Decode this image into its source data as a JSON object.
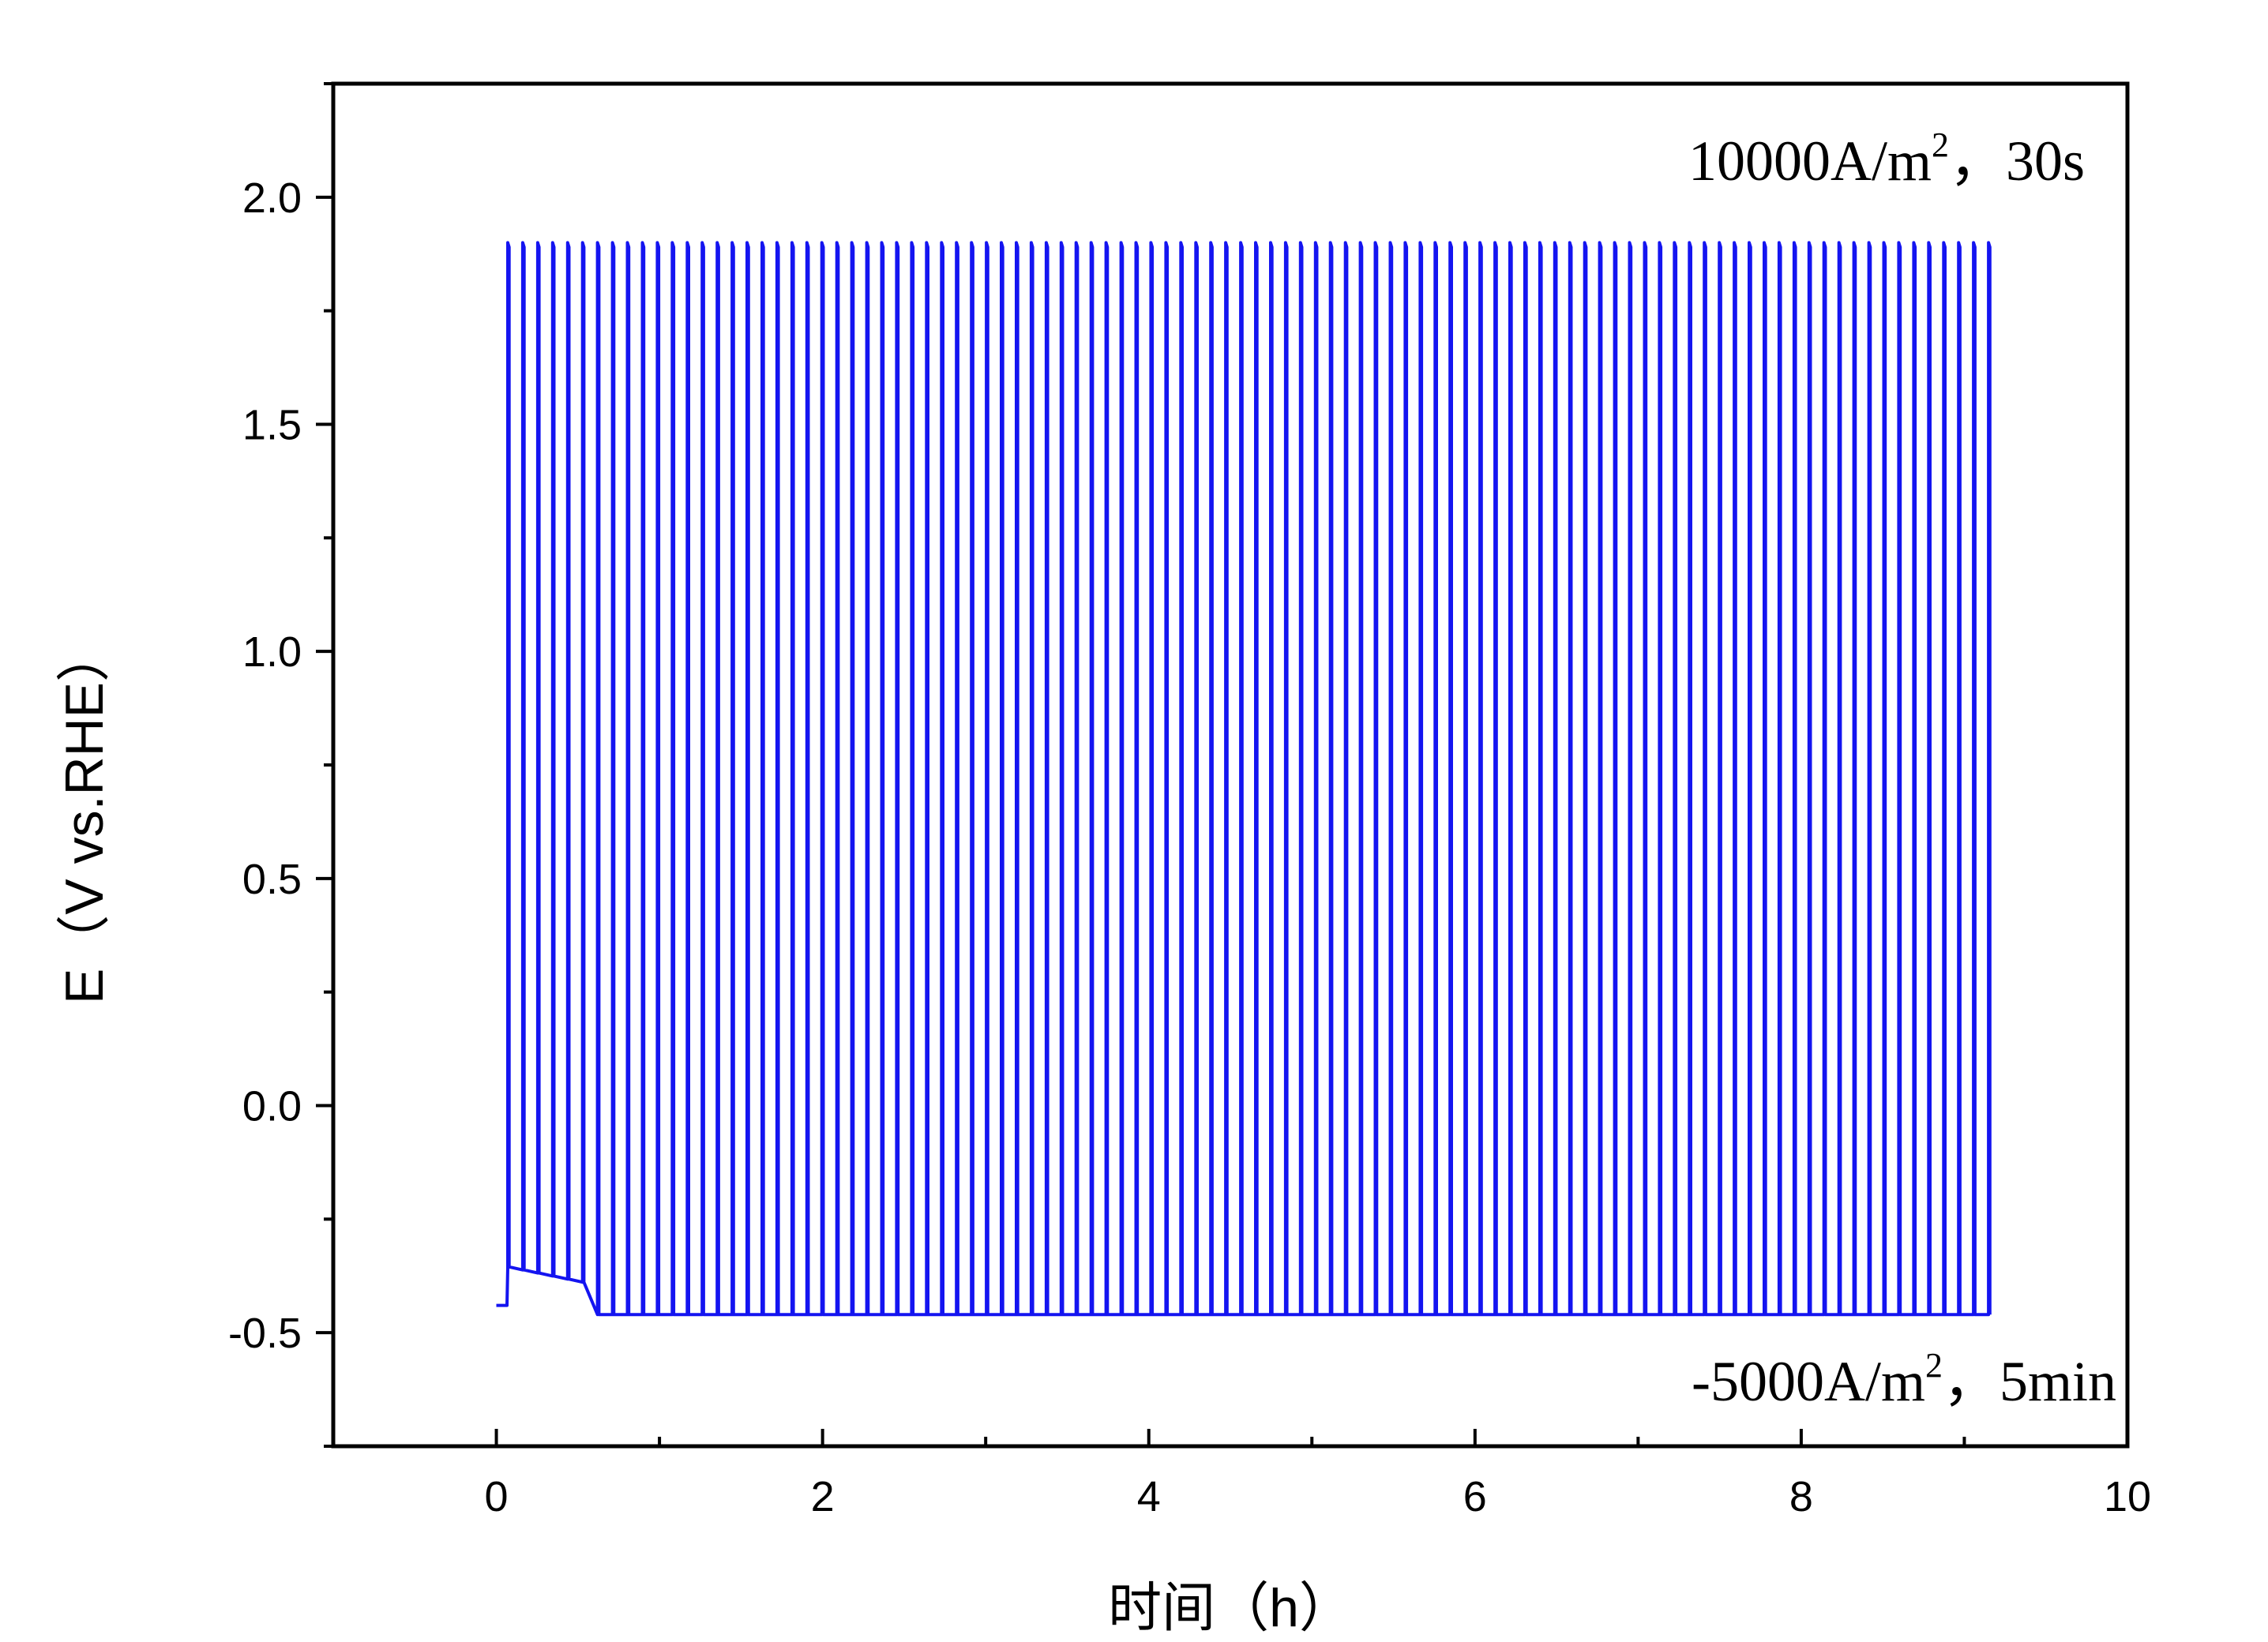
{
  "chart_data": {
    "type": "line",
    "title": "",
    "xlabel": "时间（h）",
    "ylabel": "E（V vs.RHE）",
    "xlim": [
      -1,
      10
    ],
    "ylim": [
      -0.75,
      2.25
    ],
    "xticks": [
      "0",
      "2",
      "4",
      "6",
      "8",
      "10"
    ],
    "yticks": [
      "-0.5",
      "0.0",
      "0.5",
      "1.0",
      "1.5",
      "2.0"
    ],
    "grid": false,
    "legend": "none",
    "line_color": "#1414f0",
    "annotations": {
      "top": {
        "main": "10000A/m",
        "sup": "2",
        "tail": "，30s"
      },
      "bottom": {
        "main": "-5000A/m",
        "sup": "2",
        "tail": "，5min"
      }
    },
    "series": [
      {
        "pulse_train": {
          "start_h": 0.0,
          "end_h": 9.17,
          "first_pulse_h": 0.07,
          "pulse_period_h": 0.0917,
          "pulse_width_h": 0.0083,
          "baseline_V": -0.46,
          "peak_V": 1.9,
          "initial_baseline_V": -0.35,
          "initial_baseline_until_h": 0.6
        }
      }
    ]
  }
}
